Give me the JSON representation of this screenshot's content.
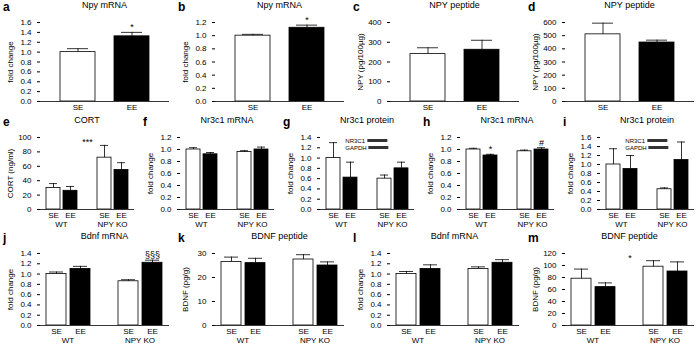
{
  "chart_data": [
    {
      "panel_label": "a",
      "type": "bar",
      "title": "Npy mRNA",
      "y_label": "fold change",
      "categories": [
        "SE",
        "EE"
      ],
      "values": [
        1.0,
        1.32
      ],
      "errors": [
        0.07,
        0.08
      ],
      "colors": [
        "#ffffff",
        "#000000"
      ],
      "ylim": [
        0,
        1.6
      ],
      "yticks": [
        {
          "value": 0,
          "label": "0.0"
        },
        0.2,
        0.4,
        0.6,
        0.8,
        {
          "value": 1,
          "label": "1.0"
        },
        1.2,
        1.4,
        1.6
      ],
      "annotations": [
        {
          "category": "EE",
          "text": "*"
        }
      ],
      "grid": false
    },
    {
      "panel_label": "b",
      "type": "bar",
      "title": "Npy mRNA",
      "y_label": "fold change",
      "categories": [
        "SE",
        "EE"
      ],
      "values": [
        1.0,
        1.12
      ],
      "errors": [
        0.02,
        0.04
      ],
      "colors": [
        "#ffffff",
        "#000000"
      ],
      "ylim": [
        0,
        1.2
      ],
      "yticks": [
        {
          "value": 0,
          "label": "0.0"
        },
        0.2,
        0.4,
        0.6,
        0.8,
        {
          "value": 1,
          "label": "1.0"
        },
        1.2
      ],
      "annotations": [
        {
          "category": "EE",
          "text": "*"
        }
      ],
      "grid": false
    },
    {
      "panel_label": "c",
      "type": "bar",
      "title": "NPY peptide",
      "y_label": "NPY (pg/100µg)",
      "categories": [
        "SE",
        "EE"
      ],
      "values": [
        240,
        262
      ],
      "errors": [
        32,
        48
      ],
      "colors": [
        "#ffffff",
        "#000000"
      ],
      "ylim": [
        0,
        400
      ],
      "yticks": [
        0,
        100,
        200,
        300,
        400
      ],
      "grid": false
    },
    {
      "panel_label": "d",
      "type": "bar",
      "title": "NPY peptide",
      "y_label": "NPY (pg/100µg)",
      "categories": [
        "SE",
        "EE"
      ],
      "values": [
        510,
        448
      ],
      "errors": [
        85,
        18
      ],
      "colors": [
        "#ffffff",
        "#000000"
      ],
      "ylim": [
        0,
        600
      ],
      "yticks": [
        0,
        100,
        200,
        300,
        400,
        500,
        600
      ],
      "grid": false
    },
    {
      "panel_label": "e",
      "type": "bar",
      "title": "CORT",
      "y_label": "CORT (ng/ml)",
      "categories": [
        "WT",
        "NPY KO"
      ],
      "series": [
        {
          "name": "SE",
          "color": "#ffffff",
          "values": [
            30,
            72
          ],
          "errors": [
            6,
            17
          ]
        },
        {
          "name": "EE",
          "color": "#000000",
          "values": [
            26,
            55
          ],
          "errors": [
            6,
            10
          ]
        }
      ],
      "ylim": [
        0,
        100
      ],
      "yticks": [
        0,
        20,
        40,
        60,
        80,
        100
      ],
      "annotations": [
        {
          "text": "***"
        }
      ],
      "grid": false
    },
    {
      "panel_label": "f",
      "type": "bar",
      "title": "Nr3c1 mRNA",
      "y_label": "fold change",
      "categories": [
        "WT",
        "NPY KO"
      ],
      "series": [
        {
          "name": "SE",
          "color": "#ffffff",
          "values": [
            1.0,
            0.96
          ],
          "errors": [
            0.03,
            0.02
          ]
        },
        {
          "name": "EE",
          "color": "#000000",
          "values": [
            0.92,
            1.0
          ],
          "errors": [
            0.03,
            0.04
          ]
        }
      ],
      "ylim": [
        0,
        1.2
      ],
      "yticks": [
        {
          "value": 0,
          "label": "0.0"
        },
        0.2,
        0.4,
        0.6,
        0.8,
        {
          "value": 1,
          "label": "1.0"
        },
        1.2
      ],
      "grid": false
    },
    {
      "panel_label": "g",
      "type": "bar",
      "title": "Nr3c1 protein",
      "y_label": "fold change",
      "categories": [
        "WT",
        "NPY KO"
      ],
      "series": [
        {
          "name": "SE",
          "color": "#ffffff",
          "values": [
            1.0,
            0.6
          ],
          "errors": [
            0.3,
            0.07
          ]
        },
        {
          "name": "EE",
          "color": "#000000",
          "values": [
            0.62,
            0.8
          ],
          "errors": [
            0.3,
            0.12
          ]
        }
      ],
      "ylim": [
        0,
        1.4
      ],
      "yticks": [
        {
          "value": 0,
          "label": "0.0"
        },
        0.2,
        0.4,
        0.6,
        0.8,
        {
          "value": 1,
          "label": "1.0"
        },
        1.2,
        1.4
      ],
      "inset_labels": [
        "NR3C1",
        "GAPDH"
      ],
      "grid": false
    },
    {
      "panel_label": "h",
      "type": "bar",
      "title": "Nr3c1 mRNA",
      "y_label": "fold change",
      "categories": [
        "WT",
        "NPY KO"
      ],
      "series": [
        {
          "name": "SE",
          "color": "#ffffff",
          "values": [
            1.0,
            0.97
          ],
          "errors": [
            0.02,
            0.02
          ]
        },
        {
          "name": "EE",
          "color": "#000000",
          "values": [
            0.9,
            1.0
          ],
          "errors": [
            0.02,
            0.03
          ]
        }
      ],
      "ylim": [
        0,
        1.2
      ],
      "yticks": [
        {
          "value": 0,
          "label": "0.0"
        },
        0.2,
        0.4,
        0.6,
        0.8,
        {
          "value": 1,
          "label": "1.0"
        },
        1.2
      ],
      "annotations": [
        {
          "category": "WT",
          "series": "EE",
          "text": "*"
        },
        {
          "category": "NPY KO",
          "series": "EE",
          "text": "#"
        }
      ],
      "grid": false
    },
    {
      "panel_label": "i",
      "type": "bar",
      "title": "Nr3c1 protein",
      "y_label": "fold change",
      "categories": [
        "WT",
        "NPY KO"
      ],
      "series": [
        {
          "name": "SE",
          "color": "#ffffff",
          "values": [
            1.0,
            0.45
          ],
          "errors": [
            0.35,
            0.03
          ]
        },
        {
          "name": "EE",
          "color": "#000000",
          "values": [
            0.9,
            1.1
          ],
          "errors": [
            0.3,
            0.4
          ]
        }
      ],
      "ylim": [
        0,
        1.6
      ],
      "yticks": [
        {
          "value": 0,
          "label": "0.0"
        },
        0.2,
        0.4,
        0.6,
        0.8,
        {
          "value": 1,
          "label": "1.0"
        },
        1.2,
        1.4,
        1.6
      ],
      "inset_labels": [
        "NR3C1",
        "GAPDH"
      ],
      "grid": false
    },
    {
      "panel_label": "j",
      "type": "bar",
      "title": "Bdnf mRNA",
      "y_label": "fold change",
      "categories": [
        "WT",
        "NPY KO"
      ],
      "series": [
        {
          "name": "SE",
          "color": "#ffffff",
          "values": [
            1.0,
            0.86
          ],
          "errors": [
            0.04,
            0.03
          ]
        },
        {
          "name": "EE",
          "color": "#000000",
          "values": [
            1.1,
            1.22
          ],
          "errors": [
            0.05,
            0.05
          ]
        }
      ],
      "ylim": [
        0,
        1.4
      ],
      "yticks": [
        {
          "value": 0,
          "label": "0.0"
        },
        0.2,
        0.4,
        0.6,
        0.8,
        {
          "value": 1,
          "label": "1.0"
        },
        1.2,
        1.4
      ],
      "annotations": [
        {
          "category": "NPY KO",
          "series": "EE",
          "text": "§§§"
        }
      ],
      "grid": false
    },
    {
      "panel_label": "k",
      "type": "bar",
      "title": "BDNF peptide",
      "y_label": "BDNF (pg/g)",
      "categories": [
        "WT",
        "NPY KO"
      ],
      "series": [
        {
          "name": "SE",
          "color": "#ffffff",
          "values": [
            26.5,
            27.5
          ],
          "errors": [
            2,
            2
          ]
        },
        {
          "name": "EE",
          "color": "#000000",
          "values": [
            26,
            25
          ],
          "errors": [
            2,
            1.5
          ]
        }
      ],
      "ylim": [
        0,
        30
      ],
      "yticks": [
        0,
        10,
        20,
        30
      ],
      "grid": false
    },
    {
      "panel_label": "l",
      "type": "bar",
      "title": "Bdnf mRNA",
      "y_label": "fold change",
      "categories": [
        "WT",
        "NPY KO"
      ],
      "series": [
        {
          "name": "SE",
          "color": "#ffffff",
          "values": [
            1.0,
            1.1
          ],
          "errors": [
            0.05,
            0.04
          ]
        },
        {
          "name": "EE",
          "color": "#000000",
          "values": [
            1.1,
            1.22
          ],
          "errors": [
            0.08,
            0.06
          ]
        }
      ],
      "ylim": [
        0,
        1.4
      ],
      "yticks": [
        {
          "value": 0,
          "label": "0.0"
        },
        0.2,
        0.4,
        0.6,
        0.8,
        {
          "value": 1,
          "label": "1.0"
        },
        1.2,
        1.4
      ],
      "grid": false
    },
    {
      "panel_label": "m",
      "type": "bar",
      "title": "BDNF peptide",
      "y_label": "BDNF (pg/g)",
      "categories": [
        "WT",
        "NPY KO"
      ],
      "series": [
        {
          "name": "SE",
          "color": "#ffffff",
          "values": [
            78,
            98
          ],
          "errors": [
            16,
            10
          ]
        },
        {
          "name": "EE",
          "color": "#000000",
          "values": [
            64,
            90
          ],
          "errors": [
            7,
            16
          ]
        }
      ],
      "ylim": [
        0,
        120
      ],
      "yticks": [
        0,
        20,
        40,
        60,
        80,
        100,
        120
      ],
      "annotations": [
        {
          "text": "*"
        }
      ],
      "grid": false
    }
  ]
}
